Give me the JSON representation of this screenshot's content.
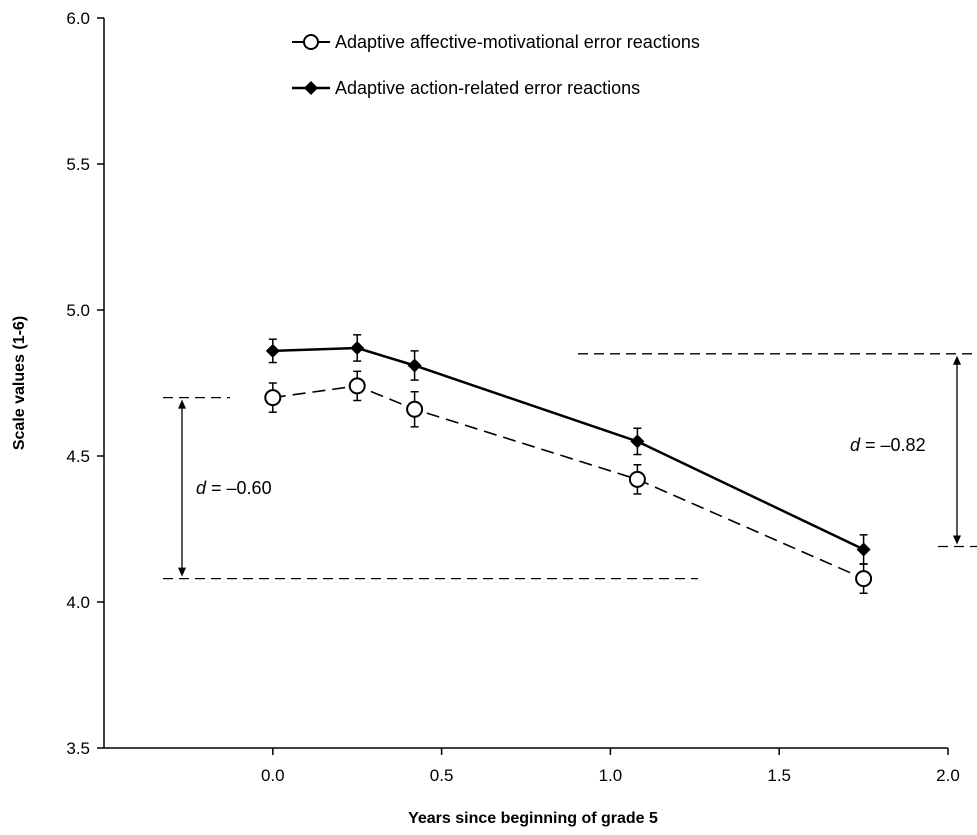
{
  "chart_data": {
    "type": "line",
    "xlabel": "Years since beginning of grade 5",
    "ylabel": "Scale values (1-6)",
    "xlim": [
      -0.5,
      2.0
    ],
    "ylim": [
      3.5,
      6.0
    ],
    "x_ticks": [
      "0.0",
      "0.5",
      "1.0",
      "1.5",
      "2.0"
    ],
    "y_ticks": [
      "3.5",
      "4.0",
      "4.5",
      "5.0",
      "5.5",
      "6.0"
    ],
    "legend_position": "top-center",
    "series": [
      {
        "name": "Adaptive affective-motivational error reactions",
        "marker": "open-circle",
        "line_style": "dashed",
        "color": "#000000",
        "x": [
          0.0,
          0.25,
          0.42,
          1.08,
          1.75
        ],
        "y": [
          4.7,
          4.74,
          4.66,
          4.42,
          4.08
        ],
        "error": [
          0.05,
          0.05,
          0.06,
          0.05,
          0.05
        ]
      },
      {
        "name": "Adaptive action-related error reactions",
        "marker": "filled-diamond",
        "line_style": "solid",
        "color": "#000000",
        "x": [
          0.0,
          0.25,
          0.42,
          1.08,
          1.75
        ],
        "y": [
          4.86,
          4.87,
          4.81,
          4.55,
          4.18
        ],
        "error": [
          0.04,
          0.045,
          0.05,
          0.045,
          0.05
        ]
      }
    ],
    "annotations": [
      {
        "italic": "d",
        "text": " = –0.60",
        "y_from": 4.7,
        "y_to": 4.08
      },
      {
        "italic": "d",
        "text": " = –0.82",
        "y_from": 4.85,
        "y_to": 4.19
      }
    ]
  }
}
